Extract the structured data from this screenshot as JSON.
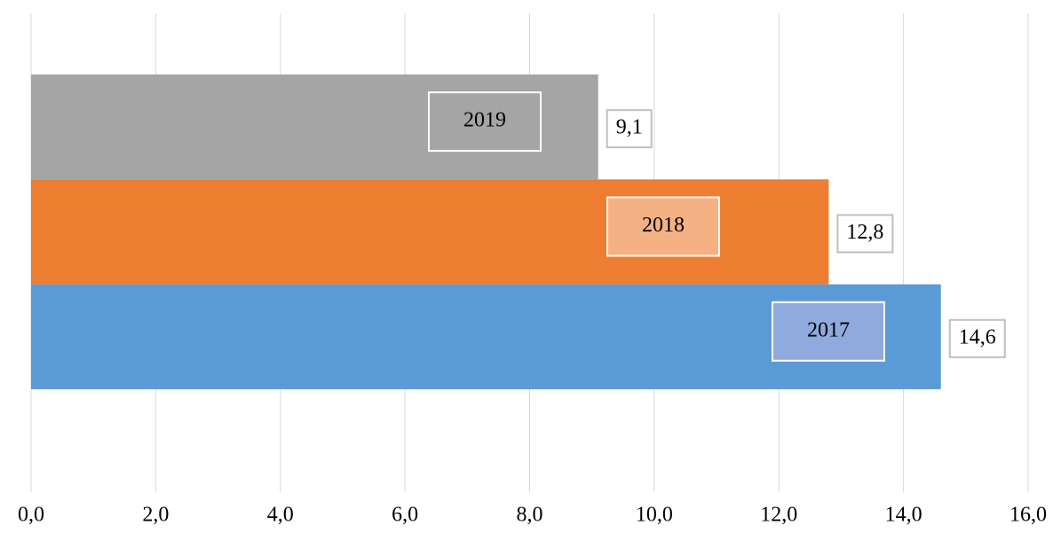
{
  "chart_data": {
    "type": "barh",
    "categories": [
      "2019",
      "2018",
      "2017"
    ],
    "values": [
      9.1,
      12.8,
      14.6
    ],
    "value_labels": [
      "9,1",
      "12,8",
      "14,6"
    ],
    "colors": [
      "#a5a5a5",
      "#ed7d31",
      "#5b9bd5"
    ],
    "xlim": [
      0,
      16
    ],
    "xticks": [
      {
        "value": 0,
        "label": "0,0"
      },
      {
        "value": 2,
        "label": "2,0"
      },
      {
        "value": 4,
        "label": "4,0"
      },
      {
        "value": 6,
        "label": "6,0"
      },
      {
        "value": 8,
        "label": "8,0"
      },
      {
        "value": 10,
        "label": "10,0"
      },
      {
        "value": 12,
        "label": "12,0"
      },
      {
        "value": 14,
        "label": "14,0"
      },
      {
        "value": 16,
        "label": "16,0"
      }
    ],
    "grid": true
  }
}
